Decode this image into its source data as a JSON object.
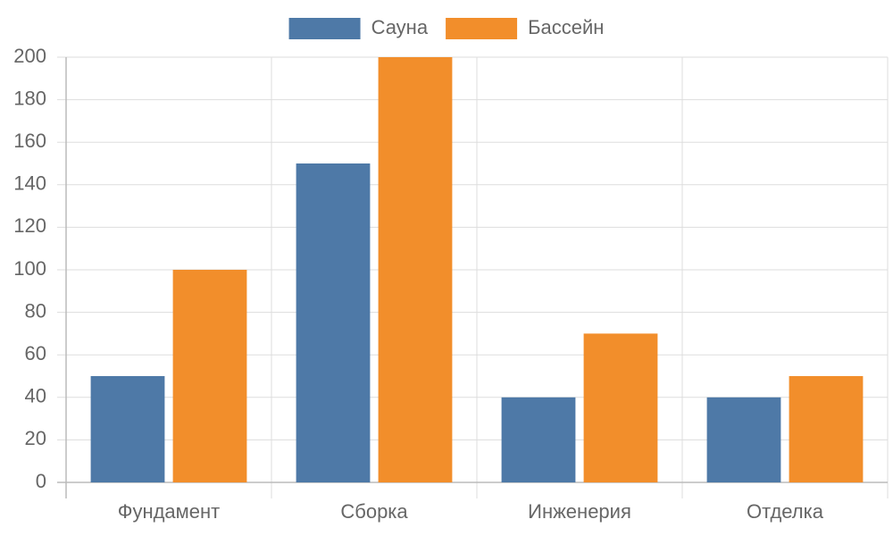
{
  "chart_data": {
    "type": "bar",
    "categories": [
      "Фундамент",
      "Сборка",
      "Инженерия",
      "Отделка"
    ],
    "series": [
      {
        "name": "Сауна",
        "color": "#4e79a7",
        "values": [
          50,
          150,
          40,
          40
        ]
      },
      {
        "name": "Бассейн",
        "color": "#f28e2b",
        "values": [
          100,
          200,
          70,
          50
        ]
      }
    ],
    "ylim": [
      0,
      200
    ],
    "yticks": [
      0,
      20,
      40,
      60,
      80,
      100,
      120,
      140,
      160,
      180,
      200
    ],
    "grid": true,
    "legend": "top"
  }
}
